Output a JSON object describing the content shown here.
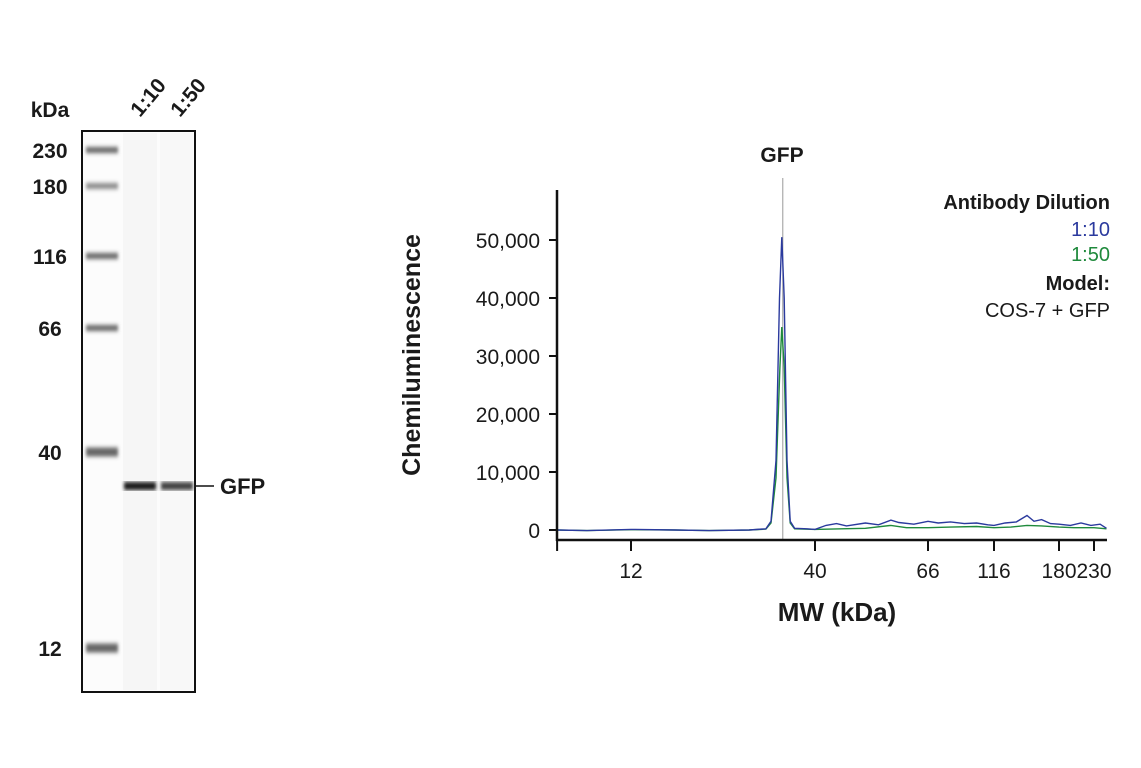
{
  "blot": {
    "unit_label": "kDa",
    "lanes": [
      "1:10",
      "1:50"
    ],
    "ladder": [
      {
        "label": "230",
        "mw": 230
      },
      {
        "label": "180",
        "mw": 180
      },
      {
        "label": "116",
        "mw": 116
      },
      {
        "label": "66",
        "mw": 66
      },
      {
        "label": "40",
        "mw": 40
      },
      {
        "label": "12",
        "mw": 12
      }
    ],
    "band_label": "GFP",
    "band_intensity": {
      "1:10": 0.9,
      "1:50": 0.75
    }
  },
  "chart_data": {
    "type": "line",
    "title": "GFP",
    "xlabel": "MW (kDa)",
    "ylabel": "Chemiluminescence",
    "x_scale": "log (ladder-calibrated)",
    "xticks": [
      12,
      40,
      66,
      116,
      180,
      230
    ],
    "xtick_labels": [
      "12",
      "40",
      "66",
      "116",
      "180",
      "230"
    ],
    "yticks": [
      0,
      10000,
      20000,
      30000,
      40000,
      50000
    ],
    "ytick_labels": [
      "0",
      "10,000",
      "20,000",
      "30,000",
      "40,000",
      "50,000"
    ],
    "ylim": [
      -1500,
      58000
    ],
    "xlim": [
      7.4,
      251
    ],
    "grid": false,
    "peak_marker": {
      "label": "GFP",
      "mw": 32.4
    },
    "legend": {
      "title": "Antibody Dilution",
      "placement": "top-right",
      "model_label": "Model:",
      "model_value": "COS-7 + GFP"
    },
    "series": [
      {
        "name": "1:10",
        "color": "#2b3a9e",
        "points": [
          [
            7.4,
            0
          ],
          [
            9,
            -100
          ],
          [
            12,
            100
          ],
          [
            16,
            0
          ],
          [
            20,
            -100
          ],
          [
            26,
            0
          ],
          [
            29,
            200
          ],
          [
            30,
            1500
          ],
          [
            31,
            12000
          ],
          [
            31.7,
            40000
          ],
          [
            32.2,
            50500
          ],
          [
            32.7,
            40000
          ],
          [
            33.3,
            12000
          ],
          [
            34,
            1500
          ],
          [
            35,
            300
          ],
          [
            38,
            200
          ],
          [
            40,
            100
          ],
          [
            42,
            800
          ],
          [
            44,
            1100
          ],
          [
            46,
            700
          ],
          [
            50,
            1200
          ],
          [
            53,
            900
          ],
          [
            56,
            1700
          ],
          [
            58,
            1300
          ],
          [
            62,
            1000
          ],
          [
            66,
            1500
          ],
          [
            72,
            1200
          ],
          [
            80,
            1400
          ],
          [
            90,
            1100
          ],
          [
            100,
            1200
          ],
          [
            110,
            900
          ],
          [
            116,
            800
          ],
          [
            125,
            1200
          ],
          [
            135,
            1400
          ],
          [
            145,
            2500
          ],
          [
            152,
            1500
          ],
          [
            160,
            1800
          ],
          [
            170,
            1100
          ],
          [
            180,
            1000
          ],
          [
            195,
            800
          ],
          [
            210,
            1200
          ],
          [
            225,
            800
          ],
          [
            240,
            1000
          ],
          [
            251,
            300
          ]
        ]
      },
      {
        "name": "1:50",
        "color": "#1f8a3c",
        "points": [
          [
            7.4,
            0
          ],
          [
            9,
            -100
          ],
          [
            12,
            50
          ],
          [
            16,
            0
          ],
          [
            20,
            -100
          ],
          [
            26,
            0
          ],
          [
            29,
            150
          ],
          [
            30,
            1200
          ],
          [
            31,
            9000
          ],
          [
            31.8,
            28000
          ],
          [
            32.2,
            35000
          ],
          [
            32.7,
            28000
          ],
          [
            33.3,
            9000
          ],
          [
            34,
            1200
          ],
          [
            35,
            200
          ],
          [
            40,
            100
          ],
          [
            45,
            200
          ],
          [
            50,
            300
          ],
          [
            56,
            800
          ],
          [
            60,
            400
          ],
          [
            66,
            400
          ],
          [
            80,
            500
          ],
          [
            100,
            600
          ],
          [
            116,
            400
          ],
          [
            130,
            500
          ],
          [
            145,
            800
          ],
          [
            160,
            700
          ],
          [
            180,
            500
          ],
          [
            200,
            400
          ],
          [
            230,
            400
          ],
          [
            251,
            200
          ]
        ]
      }
    ]
  }
}
